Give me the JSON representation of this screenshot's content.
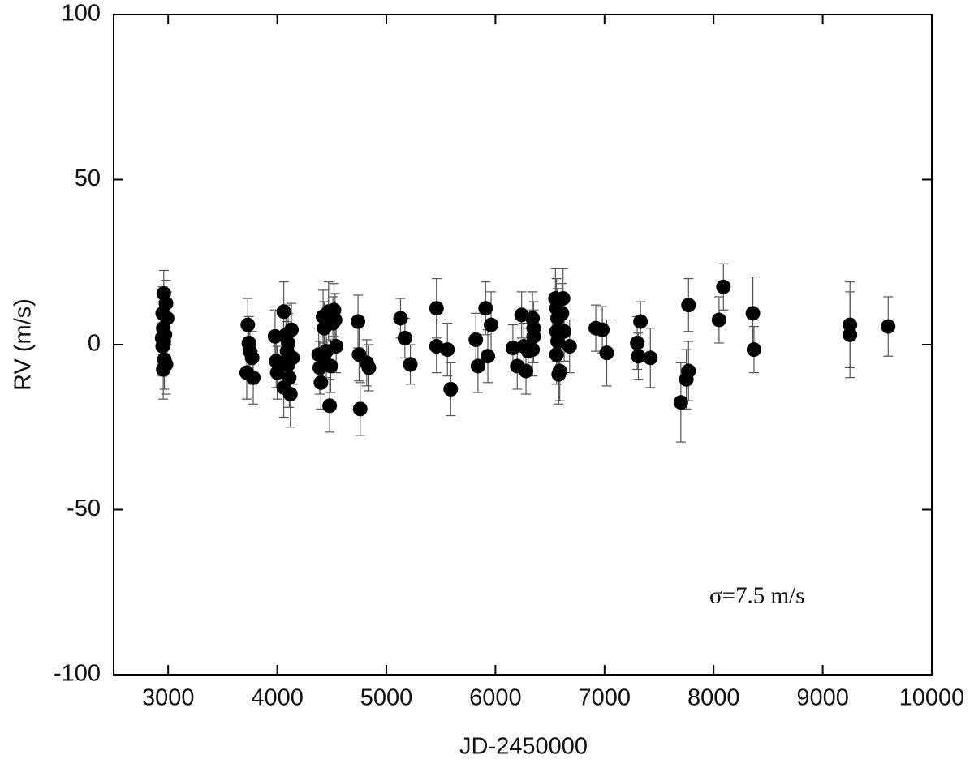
{
  "chart_data": {
    "type": "scatter",
    "xlabel": "JD-2450000",
    "ylabel": "RV (m/s)",
    "annotation": "σ=7.5 m/s",
    "xlim": [
      2500,
      10000
    ],
    "ylim": [
      -100,
      100
    ],
    "xticks": [
      3000,
      4000,
      5000,
      6000,
      7000,
      8000,
      9000,
      10000
    ],
    "yticks": [
      -100,
      -50,
      0,
      50,
      100
    ],
    "color": "#000000",
    "errorbar_color": "#555555",
    "x": [
      2960,
      2980,
      2950,
      2990,
      2955,
      2970,
      2945,
      2960,
      2950,
      2965,
      2980,
      2955,
      3730,
      3740,
      3750,
      3720,
      3770,
      3780,
      3980,
      3990,
      4000,
      4050,
      4060,
      4060,
      4080,
      4090,
      4100,
      4100,
      4110,
      4120,
      4130,
      4140,
      4380,
      4390,
      4400,
      4420,
      4420,
      4430,
      4450,
      4470,
      4480,
      4490,
      4510,
      4520,
      4530,
      4540,
      4740,
      4750,
      4760,
      4820,
      4840,
      5130,
      5170,
      5220,
      5460,
      5460,
      5560,
      5590,
      5820,
      5840,
      5910,
      5930,
      5960,
      6160,
      6200,
      6240,
      6260,
      6280,
      6300,
      6340,
      6350,
      6350,
      6340,
      6550,
      6560,
      6570,
      6560,
      6570,
      6560,
      6580,
      6590,
      6610,
      6620,
      6630,
      6680,
      6920,
      6980,
      7020,
      7300,
      7310,
      7330,
      7420,
      7700,
      7750,
      7770,
      7770,
      8050,
      8090,
      8360,
      8370,
      9250,
      9250,
      9600
    ],
    "y": [
      15.5,
      12.5,
      9.5,
      8,
      5,
      3,
      2,
      1,
      -0.5,
      -4.5,
      -6,
      -7.5,
      6,
      0.5,
      -2,
      -8.5,
      -4,
      -10,
      2.5,
      -5,
      -8.5,
      -6,
      10,
      -13,
      3,
      -2,
      0.5,
      -6,
      -10,
      -15,
      4.5,
      -4,
      -3,
      -7,
      -11.5,
      8.5,
      -4,
      5,
      -2,
      10,
      -18.5,
      -6.5,
      6.5,
      10.5,
      7.5,
      -0.5,
      7,
      -3,
      -19.5,
      -5.5,
      -7,
      8,
      2,
      -6,
      11,
      -0.5,
      -1.5,
      -13.5,
      1.5,
      -6.5,
      11,
      -3.5,
      6,
      -1,
      -6.5,
      9,
      -0.5,
      -8,
      -2,
      8,
      5,
      2.5,
      -1.5,
      14,
      11,
      8,
      4,
      1,
      -3,
      -9,
      -8,
      9.5,
      14,
      4,
      -0.5,
      5,
      4.5,
      -2.5,
      0.5,
      -3.5,
      7,
      -4,
      -17.5,
      -10.5,
      -8,
      12,
      7.5,
      17.5,
      9.5,
      -1.5,
      6,
      3,
      5.5
    ],
    "yerr": [
      7,
      7,
      8,
      8,
      8,
      8,
      8,
      9,
      9,
      9,
      9,
      9,
      8,
      8,
      8,
      8,
      8,
      8,
      8,
      8,
      8,
      8,
      9,
      9,
      9,
      9,
      9,
      9,
      9,
      10,
      8,
      8,
      8,
      8,
      8,
      8,
      8,
      8,
      8,
      9,
      8,
      8,
      8,
      8,
      8,
      8,
      8,
      8,
      8,
      7,
      7,
      6,
      6,
      6,
      9,
      8,
      8,
      8,
      8,
      8,
      8,
      8,
      10,
      7,
      7,
      7,
      7,
      7,
      7,
      8,
      8,
      8,
      8,
      9,
      9,
      9,
      9,
      9,
      9,
      9,
      9,
      9,
      9,
      9,
      8,
      7,
      7,
      10,
      8,
      7,
      6,
      9,
      12,
      9,
      9,
      8,
      7,
      7,
      11,
      7,
      13,
      13,
      9
    ]
  }
}
